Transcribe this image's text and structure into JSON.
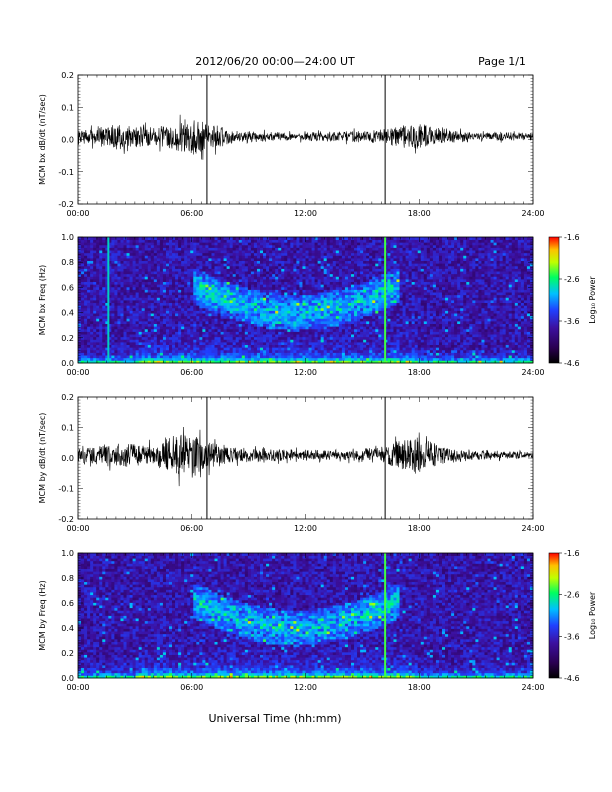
{
  "header": {
    "title": "2012/06/20  00:00—24:00 UT",
    "page": "Page 1/1"
  },
  "footer": {
    "xlabel": "Universal Time (hh:mm)"
  },
  "colors": {
    "trace": "#000000",
    "colormap": [
      "#000000",
      "#2a0050",
      "#3c10a0",
      "#2040ff",
      "#00c0ff",
      "#00ff60",
      "#c0ff00",
      "#ffc000",
      "#ff0000"
    ]
  },
  "chart_data": [
    {
      "type": "line",
      "ylabel": "MCM bx dB/dt (nT/sec)",
      "xlim": [
        0,
        24
      ],
      "ylim": [
        -0.2,
        0.2
      ],
      "x_ticks": [
        "00:00",
        "06:00",
        "12:00",
        "18:00",
        "24:00"
      ],
      "y_ticks": [
        "-0.2",
        "-0.1",
        "0.0",
        "0.1",
        "0.2"
      ],
      "markers_hours": [
        6.8,
        16.2
      ],
      "x": [
        0,
        1,
        2,
        3,
        4,
        5,
        6,
        7,
        8,
        9,
        10,
        11,
        12,
        13,
        14,
        15,
        16,
        17,
        18,
        19,
        20,
        21,
        22,
        23,
        24
      ],
      "amplitude": [
        0.015,
        0.025,
        0.04,
        0.03,
        0.025,
        0.035,
        0.06,
        0.04,
        0.02,
        0.015,
        0.012,
        0.01,
        0.01,
        0.012,
        0.015,
        0.015,
        0.02,
        0.03,
        0.04,
        0.025,
        0.015,
        0.012,
        0.01,
        0.01,
        0.008
      ]
    },
    {
      "type": "heatmap",
      "ylabel": "MCM bx Freq (Hz)",
      "xlim": [
        0,
        24
      ],
      "ylim": [
        0,
        1.0
      ],
      "x_ticks": [
        "00:00",
        "06:00",
        "12:00",
        "18:00",
        "24:00"
      ],
      "y_ticks": [
        "0.0",
        "0.2",
        "0.4",
        "0.6",
        "0.8",
        "1.0"
      ],
      "colorbar": {
        "label": "Log₁₀ Power",
        "ticks": [
          "-1.6",
          "-2.6",
          "-3.6",
          "-4.6"
        ],
        "range": [
          -4.6,
          -1.6
        ]
      },
      "features": {
        "spike_hours": [
          1.6,
          16.2
        ],
        "emission_band_hz": [
          0.4,
          0.8
        ],
        "emission_hours": [
          6,
          17
        ]
      }
    },
    {
      "type": "line",
      "ylabel": "MCM by dB/dt (nT/sec)",
      "xlim": [
        0,
        24
      ],
      "ylim": [
        -0.2,
        0.2
      ],
      "x_ticks": [
        "00:00",
        "06:00",
        "12:00",
        "18:00",
        "24:00"
      ],
      "y_ticks": [
        "-0.2",
        "-0.1",
        "0.0",
        "0.1",
        "0.2"
      ],
      "markers_hours": [
        6.8,
        16.2
      ],
      "x": [
        0,
        1,
        2,
        3,
        4,
        5,
        6,
        7,
        8,
        9,
        10,
        11,
        12,
        13,
        14,
        15,
        16,
        17,
        18,
        19,
        20,
        21,
        22,
        23,
        24
      ],
      "amplitude": [
        0.02,
        0.03,
        0.035,
        0.035,
        0.03,
        0.06,
        0.07,
        0.04,
        0.025,
        0.02,
        0.018,
        0.015,
        0.015,
        0.015,
        0.018,
        0.02,
        0.025,
        0.05,
        0.06,
        0.03,
        0.02,
        0.015,
        0.012,
        0.01,
        0.008
      ]
    },
    {
      "type": "heatmap",
      "ylabel": "MCM by Freq (Hz)",
      "xlim": [
        0,
        24
      ],
      "ylim": [
        0,
        1.0
      ],
      "x_ticks": [
        "00:00",
        "06:00",
        "12:00",
        "18:00",
        "24:00"
      ],
      "y_ticks": [
        "0.0",
        "0.2",
        "0.4",
        "0.6",
        "0.8",
        "1.0"
      ],
      "colorbar": {
        "label": "Log₁₀ Power",
        "ticks": [
          "-1.6",
          "-2.6",
          "-3.6",
          "-4.6"
        ],
        "range": [
          -4.6,
          -1.6
        ]
      },
      "features": {
        "spike_hours": [
          16.2
        ],
        "emission_band_hz": [
          0.4,
          0.8
        ],
        "emission_hours": [
          6,
          17
        ]
      }
    }
  ]
}
